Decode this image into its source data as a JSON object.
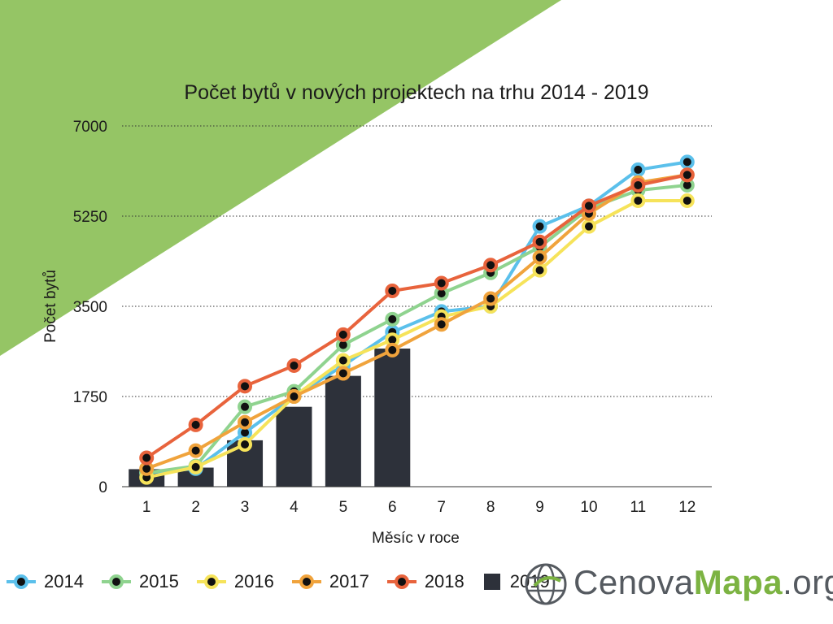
{
  "colors": {
    "background_accent": "#95c565",
    "2014": "#5bc0eb",
    "2015": "#8fd38f",
    "2016": "#f6e35a",
    "2017": "#f0a33c",
    "2018": "#e8633c",
    "2019": "#2d313a",
    "marker_dot": "#111111"
  },
  "chart_data": {
    "type": "bar+line",
    "title": "Počet bytů v nových projektech na trhu 2014 - 2019",
    "xlabel": "Měsíc v roce",
    "ylabel": "Počet bytů",
    "categories": [
      "1",
      "2",
      "3",
      "4",
      "5",
      "6",
      "7",
      "8",
      "9",
      "10",
      "11",
      "12"
    ],
    "ylim": [
      0,
      7000
    ],
    "yticks": [
      "0",
      "1750",
      "3500",
      "5250",
      "7000"
    ],
    "grid": "horizontal dotted",
    "legend": "bottom-left",
    "bar_series": {
      "name": "2019",
      "values": [
        340,
        370,
        900,
        1550,
        2150,
        2680,
        null,
        null,
        null,
        null,
        null,
        null
      ]
    },
    "line_series": [
      {
        "name": "2014",
        "values": [
          270,
          350,
          1050,
          1750,
          2350,
          3000,
          3400,
          3500,
          5050,
          5450,
          6150,
          6300
        ]
      },
      {
        "name": "2015",
        "values": [
          270,
          400,
          1550,
          1850,
          2750,
          3250,
          3750,
          4150,
          4650,
          5400,
          5750,
          5850
        ]
      },
      {
        "name": "2016",
        "values": [
          180,
          380,
          820,
          1750,
          2450,
          2850,
          3300,
          3500,
          4200,
          5050,
          5550,
          5550
        ]
      },
      {
        "name": "2017",
        "values": [
          350,
          700,
          1250,
          1750,
          2200,
          2650,
          3150,
          3650,
          4450,
          5300,
          5900,
          6050
        ]
      },
      {
        "name": "2018",
        "values": [
          560,
          1200,
          1950,
          2350,
          2950,
          3800,
          3950,
          4300,
          4750,
          5450,
          5850,
          6050
        ]
      }
    ]
  },
  "legend_labels": [
    "2014",
    "2015",
    "2016",
    "2017",
    "2018",
    "2019"
  ],
  "logo": {
    "part1": "Cenova",
    "part2": "Mapa",
    "part3": ".org"
  }
}
